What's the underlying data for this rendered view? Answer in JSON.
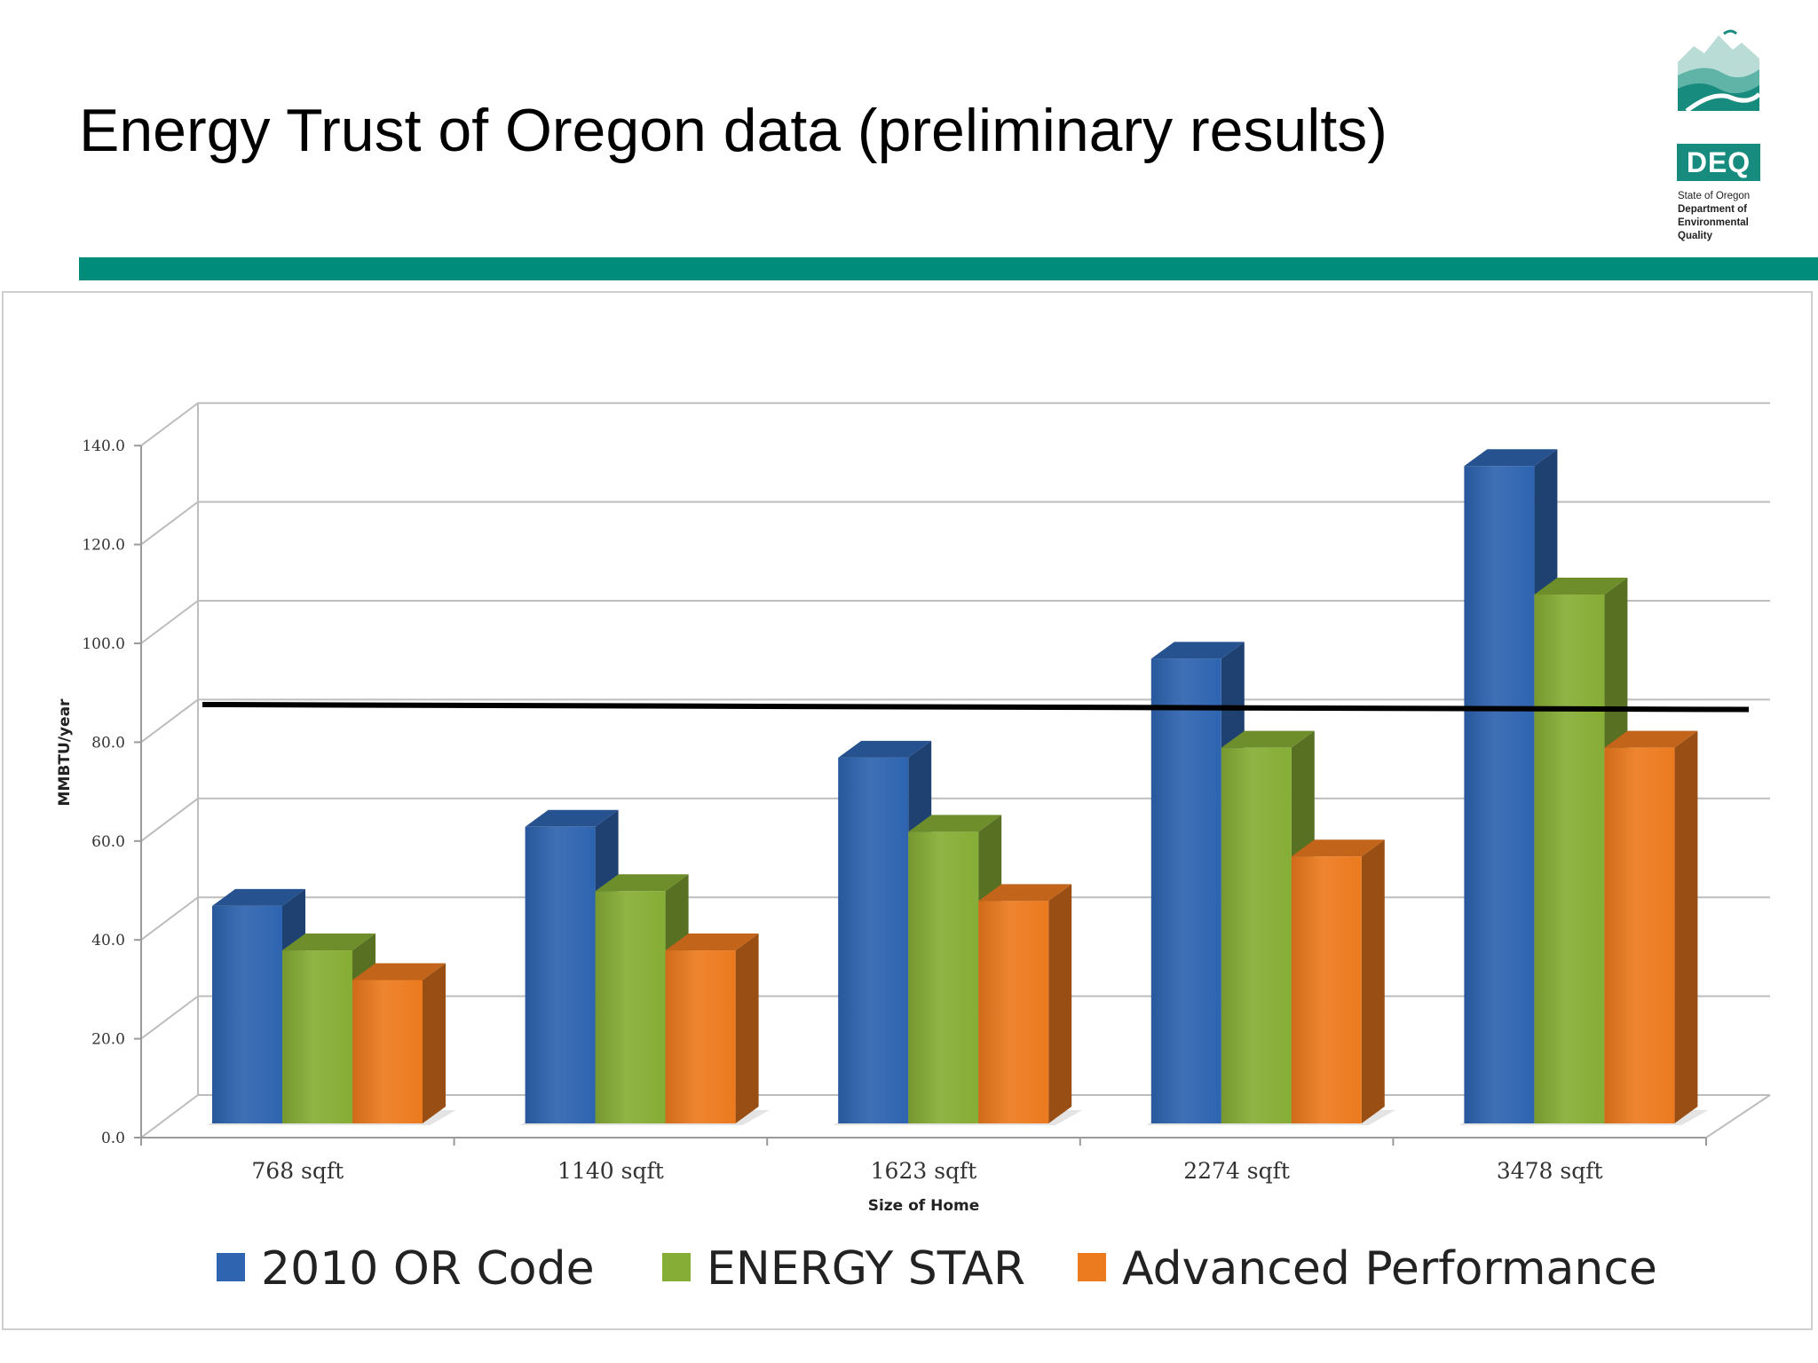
{
  "slide": {
    "title": "Energy Trust of Oregon data (preliminary results)"
  },
  "logo": {
    "badge": "DEQ",
    "lines": [
      "State of Oregon",
      "Department of",
      "Environmental",
      "Quality"
    ]
  },
  "colors": {
    "accent": "#008c7a",
    "series": [
      "#2e64b0",
      "#86ad35",
      "#ec7a1e"
    ]
  },
  "chart_data": {
    "type": "bar",
    "style": "3d-clustered-column",
    "xlabel": "Size of Home",
    "ylabel": "MMBTU/year",
    "ylim": [
      0,
      140
    ],
    "yticks": [
      "0.0",
      "20.0",
      "40.0",
      "60.0",
      "80.0",
      "100.0",
      "120.0",
      "140.0"
    ],
    "grid": true,
    "legend": "bottom",
    "categories": [
      "768 sqft",
      "1140 sqft",
      "1623 sqft",
      "2274 sqft",
      "3478 sqft"
    ],
    "series": [
      {
        "name": "2010 OR Code",
        "values": [
          44,
          60,
          74,
          94,
          133
        ]
      },
      {
        "name": "ENERGY STAR",
        "values": [
          35,
          47,
          59,
          76,
          107
        ]
      },
      {
        "name": "Advanced Performance",
        "values": [
          29,
          35,
          45,
          54,
          76
        ]
      }
    ],
    "reference_line": {
      "from": 79,
      "to": 78
    }
  }
}
